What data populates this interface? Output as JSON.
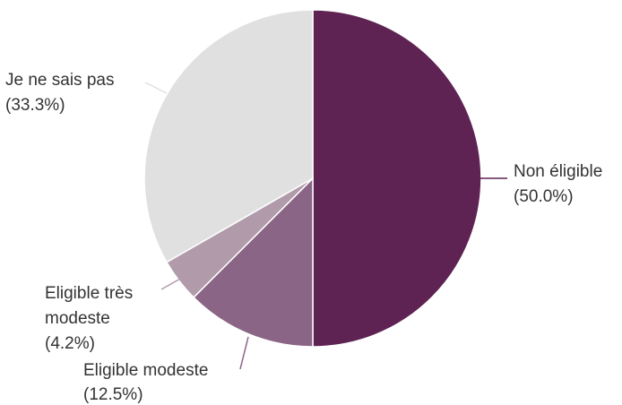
{
  "chart_data": {
    "type": "pie",
    "title": "",
    "slices": [
      {
        "label": "Non éligible",
        "percent_text": "(50.0%)",
        "value": 50.0,
        "color": "#5e2253"
      },
      {
        "label": "Eligible modeste",
        "percent_text": "(12.5%)",
        "value": 12.5,
        "color": "#8b6585"
      },
      {
        "label": "Eligible très modeste",
        "percent_text": "(4.2%)",
        "value": 4.2,
        "color": "#b19bab"
      },
      {
        "label": "Je ne sais pas",
        "percent_text": "(33.3%)",
        "value": 33.3,
        "color": "#e0e0e0"
      }
    ],
    "start_angle_deg": 0,
    "direction": "clockwise",
    "legend": "none (labels beside slices)"
  }
}
